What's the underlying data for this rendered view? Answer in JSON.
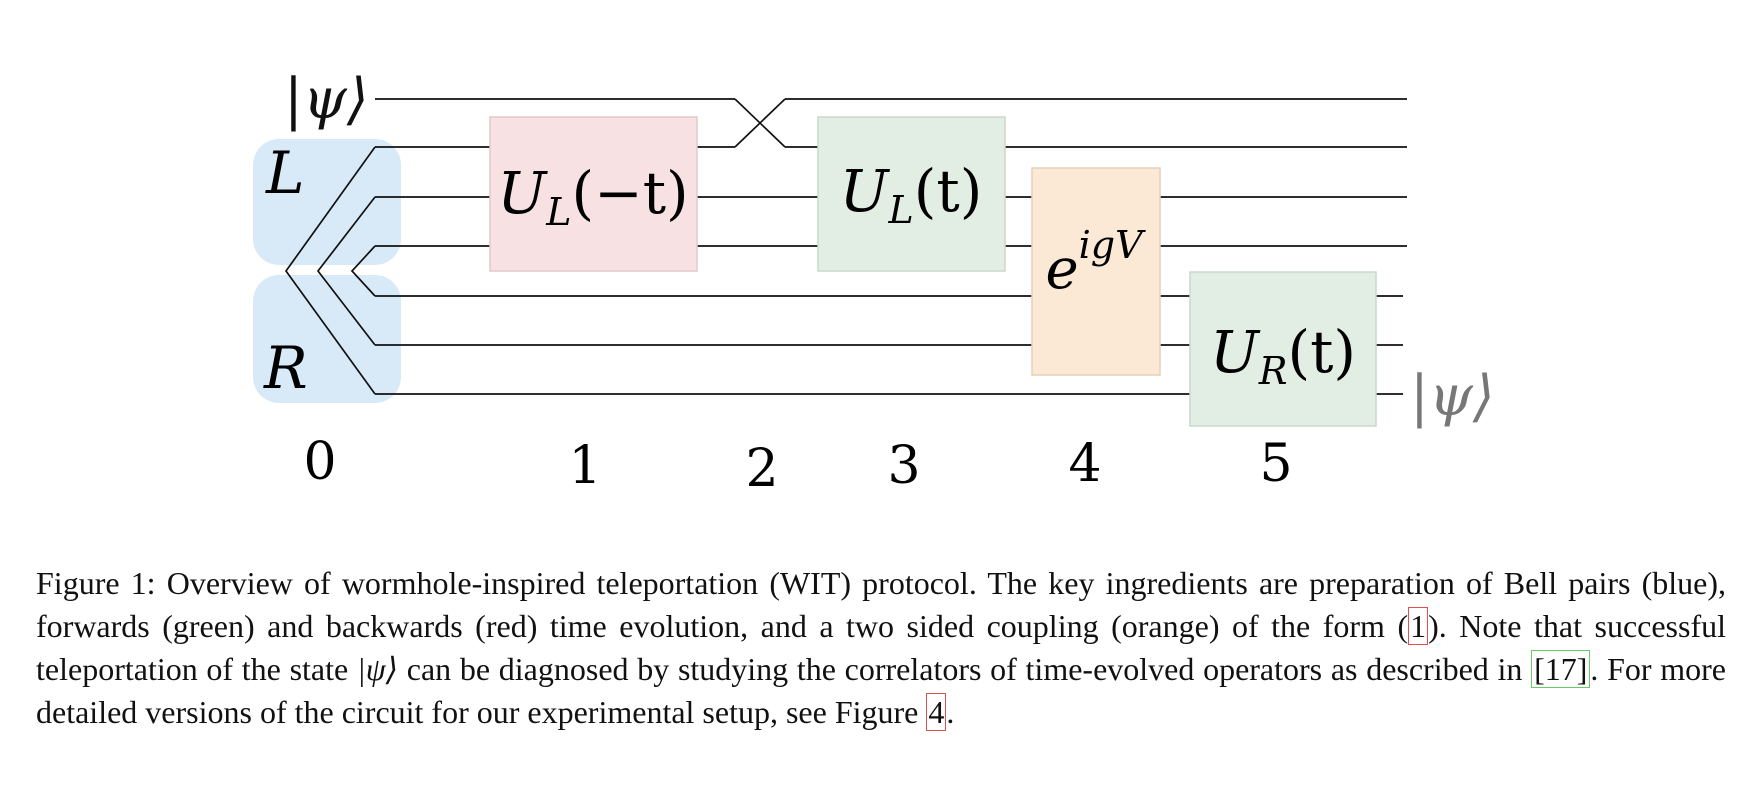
{
  "figure": {
    "input_state": "|ψ⟩",
    "output_state": "|ψ⟩",
    "register_labels": {
      "left": "L",
      "right": "R"
    },
    "gates": [
      {
        "id": "ul-minus",
        "label_main": "U",
        "label_sub": "L",
        "label_arg": "(−t)",
        "color": "#f7e1e2",
        "role": "backwards time evolution"
      },
      {
        "id": "ul",
        "label_main": "U",
        "label_sub": "L",
        "label_arg": "(t)",
        "color": "#e2eee4",
        "role": "forwards time evolution"
      },
      {
        "id": "coupling",
        "label_main": "e",
        "label_sup": "igV",
        "color": "#fbe9d6",
        "role": "two sided coupling"
      },
      {
        "id": "ur",
        "label_main": "U",
        "label_sub": "R",
        "label_arg": "(t)",
        "color": "#e2eee4",
        "role": "forwards time evolution"
      }
    ],
    "bell_pair_color": "#d8eaf7",
    "steps": [
      "0",
      "1",
      "2",
      "3",
      "4",
      "5"
    ]
  },
  "caption": {
    "figure_label": "Figure 1:",
    "text_part1": "Overview of wormhole-inspired teleportation (WIT) protocol. The key ingredients are preparation of Bell pairs (blue), forwards (green) and backwards (red) time evolution, and a two sided coupling (orange) of the form (",
    "ref_eq": "1",
    "text_part2": "). Note that successful teleportation of the state ",
    "state": "|ψ⟩",
    "text_part3": " can be diagnosed by studying the correlators of time-evolved operators as described in ",
    "ref_cite": "[17]",
    "text_part4": ". For more detailed versions of the circuit for our experimental setup, see Figure ",
    "ref_fig": "4",
    "text_part5": "."
  }
}
